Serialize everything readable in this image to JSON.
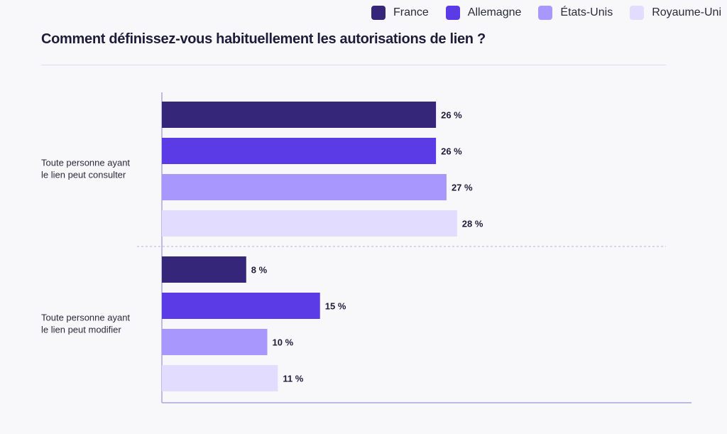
{
  "title": "Comment définissez-vous habituellement les autorisations de lien ?",
  "legend": [
    {
      "label": "France",
      "color": "#36267a"
    },
    {
      "label": "Allemagne",
      "color": "#5b3be6"
    },
    {
      "label": "États-Unis",
      "color": "#a898fd"
    },
    {
      "label": "Royaume-Uni",
      "color": "#e2dcfe"
    }
  ],
  "chart_data": {
    "type": "bar",
    "orientation": "horizontal",
    "title": "Comment définissez-vous habituellement les autorisations de lien ?",
    "categories": [
      [
        "Toute personne ayant",
        "le lien peut consulter"
      ],
      [
        "Toute personne ayant",
        "le lien peut modifier"
      ]
    ],
    "series": [
      {
        "name": "France",
        "color": "#36267a",
        "values": [
          26,
          8
        ]
      },
      {
        "name": "Allemagne",
        "color": "#5b3be6",
        "values": [
          26,
          15
        ]
      },
      {
        "name": "États-Unis",
        "color": "#a898fd",
        "values": [
          27,
          10
        ]
      },
      {
        "name": "Royaume-Uni",
        "color": "#e2dcfe",
        "values": [
          28,
          11
        ]
      }
    ],
    "value_suffix": " %",
    "xlim": [
      0,
      50
    ],
    "legend_position": "top-right",
    "grid": false
  }
}
